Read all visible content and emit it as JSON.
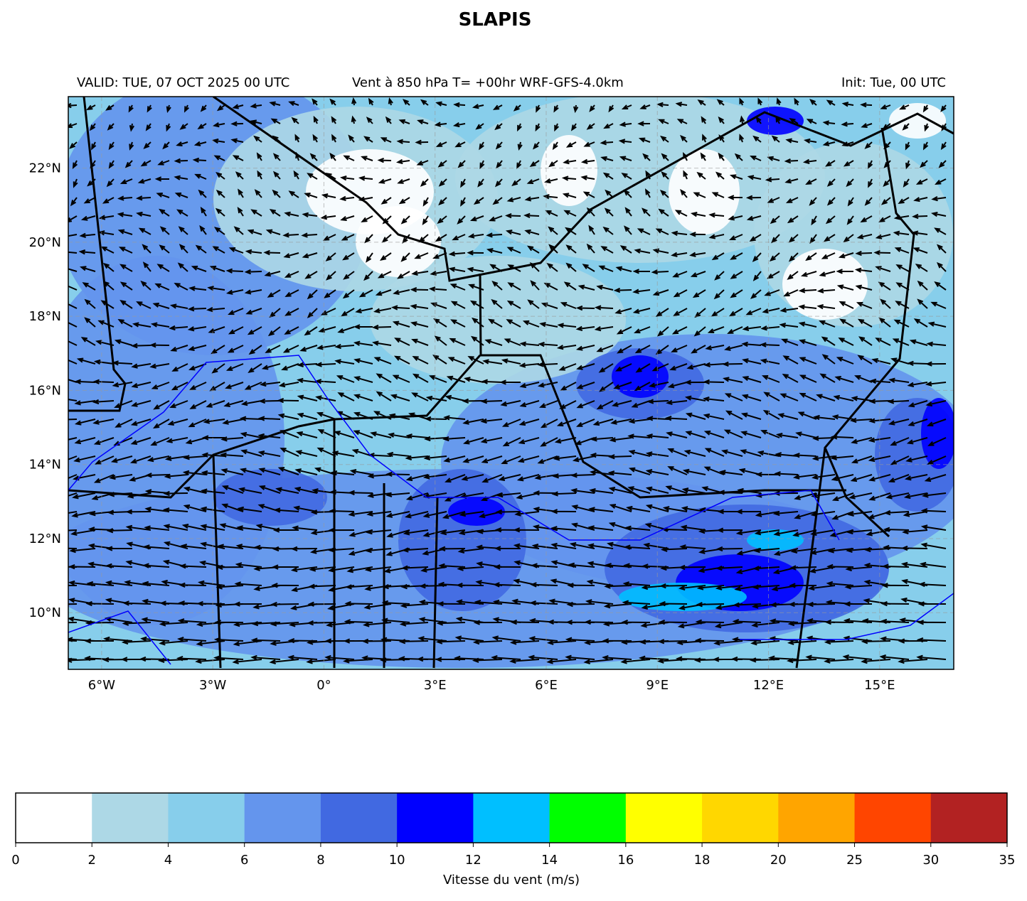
{
  "title": "SLAPIS",
  "header": {
    "valid": "VALID: TUE, 07 OCT 2025 00 UTC",
    "product": "Vent à 850 hPa T= +00hr  WRF-GFS-4.0km",
    "init": "Init: Tue, 00 UTC"
  },
  "map": {
    "lonlim": [
      -6.9,
      17.0
    ],
    "latlim": [
      8.47,
      23.93
    ],
    "lat_ticks": [
      {
        "value": 10,
        "label": "10°N"
      },
      {
        "value": 12,
        "label": "12°N"
      },
      {
        "value": 14,
        "label": "14°N"
      },
      {
        "value": 16,
        "label": "16°N"
      },
      {
        "value": 18,
        "label": "18°N"
      },
      {
        "value": 20,
        "label": "20°N"
      },
      {
        "value": 22,
        "label": "22°N"
      }
    ],
    "lon_ticks": [
      {
        "value": -6,
        "label": "6°W"
      },
      {
        "value": -3,
        "label": "3°W"
      },
      {
        "value": 0,
        "label": "0°"
      },
      {
        "value": 3,
        "label": "3°E"
      },
      {
        "value": 6,
        "label": "6°E"
      },
      {
        "value": 9,
        "label": "9°E"
      },
      {
        "value": 12,
        "label": "12°E"
      },
      {
        "value": 15,
        "label": "15°E"
      }
    ],
    "grid": true
  },
  "colorbar": {
    "label": "Vitesse du vent (m/s)",
    "ticks": [
      0,
      2,
      4,
      6,
      8,
      10,
      12,
      14,
      16,
      18,
      20,
      25,
      30,
      35
    ],
    "colors": [
      "#ffffff",
      "#add8e6",
      "#87ceeb",
      "#6495ed",
      "#4169e1",
      "#0000ff",
      "#00bfff",
      "#00ff00",
      "#ffff00",
      "#ffd700",
      "#ffa500",
      "#ff4500",
      "#b22222"
    ]
  }
}
